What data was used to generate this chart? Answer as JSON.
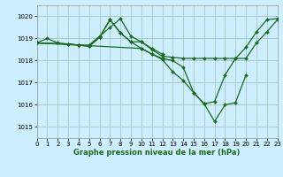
{
  "title": "Graphe pression niveau de la mer (hPa)",
  "bg_color": "#cceeff",
  "grid_color": "#aacccc",
  "line_color": "#1a6b1a",
  "xlim": [
    0,
    23
  ],
  "ylim": [
    1014.5,
    1020.5
  ],
  "yticks": [
    1015,
    1016,
    1017,
    1018,
    1019,
    1020
  ],
  "xticks": [
    0,
    1,
    2,
    3,
    4,
    5,
    6,
    7,
    8,
    9,
    10,
    11,
    12,
    13,
    14,
    15,
    16,
    17,
    18,
    19,
    20,
    21,
    22,
    23
  ],
  "series": [
    {
      "x": [
        0,
        1,
        2,
        3,
        4,
        5,
        6,
        7,
        8,
        9,
        10,
        11,
        12,
        13,
        14,
        15,
        16,
        17,
        18,
        19,
        20,
        21,
        22,
        23
      ],
      "y": [
        1018.8,
        1019.0,
        1018.8,
        1018.75,
        1018.7,
        1018.7,
        1019.1,
        1019.5,
        1019.9,
        1019.1,
        1018.85,
        1018.5,
        1018.2,
        1018.15,
        1018.1,
        1018.1,
        1018.1,
        1018.1,
        1018.1,
        1018.1,
        1018.1,
        1018.8,
        1019.3,
        1019.85
      ]
    },
    {
      "x": [
        0,
        3,
        4,
        5,
        6,
        7,
        8,
        9,
        10,
        11,
        12,
        13,
        14,
        15,
        16,
        17,
        18,
        19,
        20
      ],
      "y": [
        1018.8,
        1018.75,
        1018.7,
        1018.65,
        1019.05,
        1019.85,
        1019.25,
        1018.85,
        1018.55,
        1018.3,
        1018.05,
        1017.5,
        1017.1,
        1016.55,
        1016.05,
        1015.25,
        1016.0,
        1016.1,
        1017.35
      ]
    },
    {
      "x": [
        0,
        3,
        4,
        5,
        6,
        7,
        8,
        9,
        10,
        11,
        12
      ],
      "y": [
        1018.8,
        1018.75,
        1018.7,
        1018.65,
        1019.05,
        1019.85,
        1019.25,
        1018.85,
        1018.85,
        1018.55,
        1018.3
      ]
    },
    {
      "x": [
        0,
        10,
        11,
        12,
        13,
        14,
        15,
        16,
        17,
        18,
        19,
        20,
        21,
        22,
        23
      ],
      "y": [
        1018.8,
        1018.55,
        1018.3,
        1018.1,
        1018.0,
        1017.7,
        1016.55,
        1016.05,
        1016.15,
        1017.35,
        1018.1,
        1018.6,
        1019.3,
        1019.85,
        1019.9
      ]
    }
  ]
}
